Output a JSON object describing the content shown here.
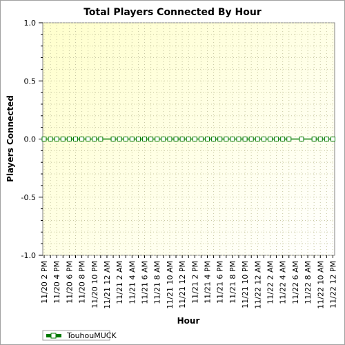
{
  "chart_data": {
    "type": "line",
    "title": "Total Players Connected By Hour",
    "xlabel": "Hour",
    "ylabel": "Players Connected",
    "ylim": [
      -1.0,
      1.0
    ],
    "yticks": [
      "1.0",
      "0.5",
      "0.0",
      "-0.5",
      "-1.0"
    ],
    "grid": true,
    "legend_position": "bottom-left",
    "xticks": [
      "11/20 2 PM",
      "11/20 4 PM",
      "11/20 6 PM",
      "11/20 8 PM",
      "11/20 10 PM",
      "11/21 12 AM",
      "11/21 2 AM",
      "11/21 4 AM",
      "11/21 6 AM",
      "11/21 8 AM",
      "11/21 10 AM",
      "11/21 12 PM",
      "11/21 2 PM",
      "11/21 4 PM",
      "11/21 6 PM",
      "11/21 8 PM",
      "11/21 10 PM",
      "11/22 12 AM",
      "11/22 2 AM",
      "11/22 4 AM",
      "11/22 6 AM",
      "11/22 8 AM",
      "11/22 10 AM",
      "11/22 12 PM"
    ],
    "x_hours": [
      0,
      1,
      2,
      3,
      4,
      5,
      6,
      7,
      8,
      9,
      11,
      12,
      13,
      14,
      15,
      16,
      17,
      18,
      19,
      20,
      21,
      22,
      23,
      24,
      25,
      26,
      27,
      28,
      29,
      30,
      31,
      32,
      33,
      34,
      35,
      36,
      37,
      38,
      39,
      41,
      43,
      44,
      45,
      46
    ],
    "series": [
      {
        "name": "TouhouMUCK",
        "color": "#007a00",
        "values": [
          0,
          0,
          0,
          0,
          0,
          0,
          0,
          0,
          0,
          0,
          0,
          0,
          0,
          0,
          0,
          0,
          0,
          0,
          0,
          0,
          0,
          0,
          0,
          0,
          0,
          0,
          0,
          0,
          0,
          0,
          0,
          0,
          0,
          0,
          0,
          0,
          0,
          0,
          0,
          0,
          0,
          0,
          0,
          0
        ]
      }
    ]
  }
}
